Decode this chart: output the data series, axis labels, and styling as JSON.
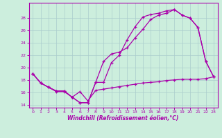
{
  "xlabel": "Windchill (Refroidissement éolien,°C)",
  "background_color": "#cceedd",
  "grid_color": "#aacccc",
  "line_color": "#aa00aa",
  "xlim": [
    -0.5,
    23.5
  ],
  "ylim": [
    13.5,
    30.5
  ],
  "yticks": [
    14,
    16,
    18,
    20,
    22,
    24,
    26,
    28
  ],
  "xticks": [
    0,
    1,
    2,
    3,
    4,
    5,
    6,
    7,
    8,
    9,
    10,
    11,
    12,
    13,
    14,
    15,
    16,
    17,
    18,
    19,
    20,
    21,
    22,
    23
  ],
  "series1_x": [
    0,
    1,
    2,
    3,
    4,
    5,
    6,
    7,
    8,
    9,
    10,
    11,
    12,
    13,
    14,
    15,
    16,
    17,
    18,
    19,
    20,
    21,
    22,
    23
  ],
  "series1_y": [
    19.0,
    17.5,
    16.8,
    16.2,
    16.2,
    15.2,
    14.3,
    14.3,
    17.6,
    21.0,
    22.2,
    22.5,
    23.2,
    24.8,
    26.2,
    27.8,
    28.5,
    28.8,
    29.4,
    28.5,
    28.0,
    26.5,
    21.0,
    18.5
  ],
  "series2_x": [
    0,
    1,
    2,
    3,
    4,
    5,
    6,
    7,
    8,
    9,
    10,
    11,
    12,
    13,
    14,
    15,
    16,
    17,
    18,
    19,
    20,
    21,
    22,
    23
  ],
  "series2_y": [
    19.0,
    17.5,
    16.8,
    16.2,
    16.2,
    15.2,
    14.3,
    14.3,
    17.6,
    17.6,
    20.8,
    22.0,
    24.5,
    26.6,
    28.2,
    28.6,
    28.8,
    29.2,
    29.4,
    28.5,
    28.0,
    26.5,
    21.0,
    18.5
  ],
  "series3_x": [
    0,
    1,
    2,
    3,
    4,
    5,
    6,
    7,
    8,
    9,
    10,
    11,
    12,
    13,
    14,
    15,
    16,
    17,
    18,
    19,
    20,
    21,
    22,
    23
  ],
  "series3_y": [
    19.0,
    17.5,
    16.8,
    16.1,
    16.1,
    15.2,
    16.1,
    14.6,
    16.3,
    16.5,
    16.7,
    16.9,
    17.1,
    17.3,
    17.5,
    17.6,
    17.7,
    17.9,
    18.0,
    18.1,
    18.1,
    18.1,
    18.2,
    18.5
  ]
}
